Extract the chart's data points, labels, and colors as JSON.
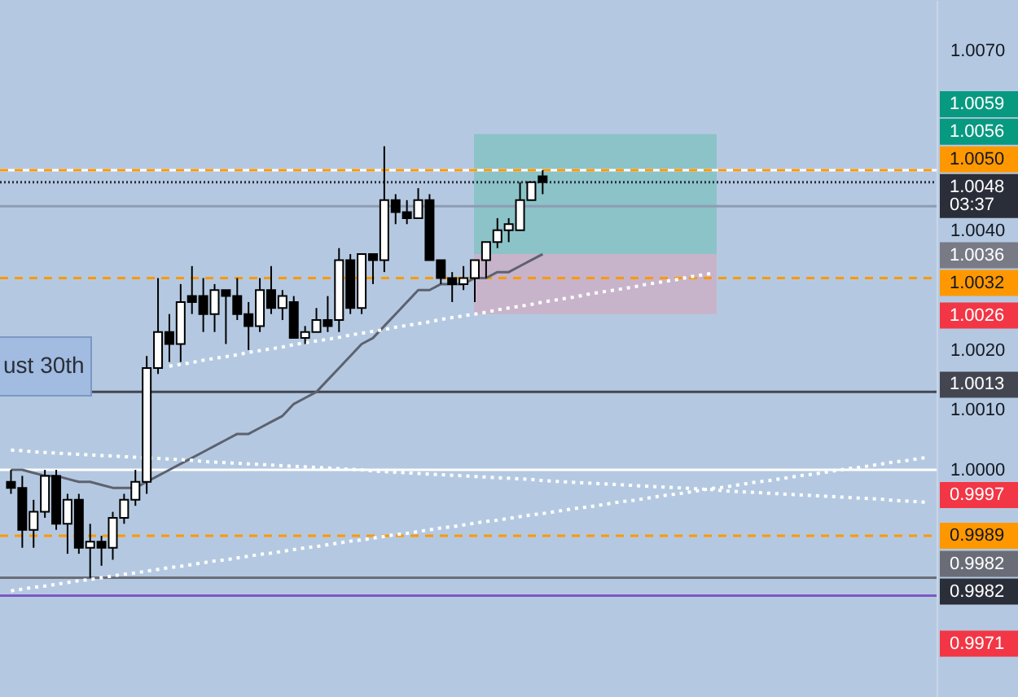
{
  "chart_data": {
    "type": "candlestick",
    "categories": [
      null,
      null,
      null,
      null,
      null,
      null,
      null,
      null,
      null,
      null,
      null,
      null,
      null,
      null,
      null,
      null,
      null,
      null,
      null,
      null,
      null,
      null,
      null,
      null,
      null,
      null,
      null,
      null,
      null,
      null,
      null,
      null,
      null,
      null,
      null,
      null,
      null,
      null,
      null,
      null,
      null,
      null,
      null,
      null,
      null,
      null,
      null,
      null,
      null,
      null,
      null,
      null,
      null,
      null,
      null,
      null,
      null,
      null,
      null,
      null,
      null,
      null,
      null,
      null,
      null,
      null,
      null,
      null,
      null,
      null,
      null,
      null,
      null,
      null,
      null,
      null,
      null,
      null,
      null,
      null,
      null,
      null
    ],
    "ohlc": [
      [
        0.9998,
        1.0,
        0.9996,
        0.9997
      ],
      [
        0.9997,
        0.9999,
        0.9987,
        0.999
      ],
      [
        0.999,
        0.9995,
        0.9987,
        0.9993
      ],
      [
        0.9993,
        1.0,
        0.9992,
        0.9999
      ],
      [
        0.9999,
        1.0,
        0.999,
        0.9991
      ],
      [
        0.9991,
        0.9996,
        0.9986,
        0.9995
      ],
      [
        0.9995,
        0.9996,
        0.9986,
        0.9987
      ],
      [
        0.9987,
        0.9991,
        0.9982,
        0.9988
      ],
      [
        0.9988,
        0.9989,
        0.9984,
        0.9987
      ],
      [
        0.9987,
        0.9993,
        0.9985,
        0.9992
      ],
      [
        0.9992,
        0.9996,
        0.9991,
        0.9995
      ],
      [
        0.9995,
        1.0,
        0.9994,
        0.9998
      ],
      [
        0.9998,
        1.0019,
        0.9996,
        1.0017
      ],
      [
        1.0017,
        1.0032,
        1.0016,
        1.0023
      ],
      [
        1.0023,
        1.0026,
        1.0018,
        1.0021
      ],
      [
        1.0021,
        1.0031,
        1.0018,
        1.0028
      ],
      [
        1.0029,
        1.0034,
        1.0026,
        1.0028
      ],
      [
        1.0029,
        1.0032,
        1.0023,
        1.0026
      ],
      [
        1.0026,
        1.0031,
        1.0023,
        1.003
      ],
      [
        1.003,
        1.003,
        1.0021,
        1.0029
      ],
      [
        1.0029,
        1.0032,
        1.0025,
        1.0026
      ],
      [
        1.0026,
        1.0028,
        1.002,
        1.0024
      ],
      [
        1.0024,
        1.0032,
        1.0023,
        1.003
      ],
      [
        1.003,
        1.0034,
        1.0026,
        1.0027
      ],
      [
        1.0027,
        1.003,
        1.0025,
        1.0029
      ],
      [
        1.0028,
        1.0029,
        1.0022,
        1.0022
      ],
      [
        1.0022,
        1.0024,
        1.0021,
        1.0023
      ],
      [
        1.0023,
        1.0027,
        1.0023,
        1.0025
      ],
      [
        1.0025,
        1.0029,
        1.0023,
        1.0024
      ],
      [
        1.0025,
        1.0037,
        1.0023,
        1.0035
      ],
      [
        1.0035,
        1.0036,
        1.0026,
        1.0027
      ],
      [
        1.0027,
        1.0036,
        1.0026,
        1.0036
      ],
      [
        1.0036,
        1.0036,
        1.0031,
        1.0035
      ],
      [
        1.0035,
        1.0054,
        1.0033,
        1.0045
      ],
      [
        1.0045,
        1.0046,
        1.0041,
        1.0043
      ],
      [
        1.0043,
        1.0045,
        1.0041,
        1.0042
      ],
      [
        1.0042,
        1.0047,
        1.0042,
        1.0045
      ],
      [
        1.0045,
        1.0046,
        1.0035,
        1.0035
      ],
      [
        1.0035,
        1.0035,
        1.0031,
        1.0032
      ],
      [
        1.0032,
        1.0033,
        1.0028,
        1.0031
      ],
      [
        1.0031,
        1.0034,
        1.003,
        1.0032
      ],
      [
        1.0032,
        1.0035,
        1.0028,
        1.0035
      ],
      [
        1.0035,
        1.0038,
        1.0032,
        1.0038
      ],
      [
        1.0038,
        1.0042,
        1.0037,
        1.004
      ],
      [
        1.004,
        1.0042,
        1.0038,
        1.0041
      ],
      [
        1.004,
        1.0048,
        1.004,
        1.0045
      ],
      [
        1.0045,
        1.0048,
        1.0045,
        1.0048
      ],
      [
        1.0049,
        1.005,
        1.0046,
        1.0048
      ],
      null,
      null,
      null,
      null,
      null,
      null,
      null,
      null,
      null,
      null,
      null,
      null,
      null,
      null,
      null,
      null,
      null,
      null,
      null,
      null,
      null,
      null,
      null,
      null,
      null,
      null,
      null,
      null,
      null,
      null,
      null,
      null,
      null,
      null
    ],
    "colors": [
      "#000000",
      "#000000",
      "#ffffff",
      "#ffffff",
      "#000000",
      "#ffffff",
      "#000000",
      "#ffffff",
      "#000000",
      "#ffffff",
      "#ffffff",
      "#ffffff",
      "#ffffff",
      "#ffffff",
      "#000000",
      "#ffffff",
      "#000000",
      "#000000",
      "#ffffff",
      "#000000",
      "#000000",
      "#000000",
      "#ffffff",
      "#000000",
      "#ffffff",
      "#000000",
      "#ffffff",
      "#ffffff",
      "#000000",
      "#ffffff",
      "#000000",
      "#ffffff",
      "#000000",
      "#ffffff",
      "#000000",
      "#000000",
      "#ffffff",
      "#000000",
      "#000000",
      "#000000",
      "#ffffff",
      "#ffffff",
      "#ffffff",
      "#ffffff",
      "#ffffff",
      "#ffffff",
      "#ffffff",
      "#000000",
      null,
      null,
      null,
      null,
      null,
      null,
      null,
      null,
      null,
      null,
      null,
      null,
      null,
      null,
      null,
      null,
      null,
      null,
      null,
      null,
      null,
      null,
      null,
      null,
      null,
      null,
      null,
      null,
      null,
      null,
      null,
      null,
      null,
      null
    ],
    "series": [
      {
        "type": "line",
        "color": "#5d6270",
        "line_style": "solid",
        "values": [
          1.0,
          1.0,
          0.99995,
          0.9999,
          0.9999,
          0.99985,
          0.9998,
          0.9998,
          0.99975,
          0.9997,
          0.9997,
          0.9997,
          0.9998,
          0.9999,
          1.0,
          1.0001,
          1.0002,
          1.0003,
          1.0004,
          1.0005,
          1.0006,
          1.0006,
          1.0007,
          1.0008,
          1.0009,
          1.0011,
          1.0012,
          1.0013,
          1.0015,
          1.0017,
          1.0019,
          1.0021,
          1.0022,
          1.0024,
          1.0026,
          1.0028,
          1.003,
          1.003,
          1.0031,
          1.0031,
          1.0031,
          1.0032,
          1.0032,
          1.0033,
          1.0033,
          1.0034,
          1.0035,
          1.0036,
          null,
          null,
          null,
          null,
          null,
          null,
          null,
          null,
          null,
          null,
          null,
          null,
          null,
          null,
          null,
          null,
          null,
          null,
          null,
          null,
          null,
          null,
          null,
          null,
          null,
          null,
          null,
          null,
          null,
          null,
          null,
          null,
          null,
          null
        ]
      },
      {
        "type": "line",
        "color": "#ffffff",
        "line_style": "dotted",
        "values": [
          null,
          null,
          null,
          null,
          null,
          null,
          null,
          null,
          null,
          null,
          null,
          null,
          null,
          null,
          1.00173,
          1.00176,
          1.00179,
          1.00183,
          1.00186,
          1.00189,
          1.00192,
          1.00196,
          1.00199,
          1.00202,
          1.00205,
          1.00209,
          1.00212,
          1.00215,
          1.00218,
          1.00221,
          1.00225,
          1.00228,
          1.00231,
          1.00234,
          1.00238,
          1.00241,
          1.00244,
          1.00247,
          1.00251,
          1.00254,
          1.00257,
          1.0026,
          1.00263,
          1.00267,
          1.0027,
          1.00273,
          1.00276,
          1.0028,
          1.00283,
          1.00286,
          1.00289,
          1.00293,
          1.00296,
          1.00299,
          1.00302,
          1.00305,
          1.00309,
          1.00312,
          1.00315,
          1.00318,
          1.00322,
          1.00325,
          1.00328,
          null,
          null,
          null,
          null,
          null,
          null,
          null,
          null,
          null,
          null,
          null,
          null,
          null,
          null,
          null,
          null,
          null,
          null,
          null
        ]
      },
      {
        "type": "line",
        "color": "#ffffff",
        "line_style": "dotted",
        "values": [
          0.99798,
          0.99801,
          0.99804,
          0.99806,
          0.99809,
          0.99812,
          0.99815,
          0.99817,
          0.9982,
          0.99823,
          0.99826,
          0.99828,
          0.99831,
          0.99834,
          0.99837,
          0.99839,
          0.99842,
          0.99845,
          0.99848,
          0.9985,
          0.99853,
          0.99856,
          0.99859,
          0.99861,
          0.99864,
          0.99867,
          0.9987,
          0.99872,
          0.99875,
          0.99878,
          0.99881,
          0.99883,
          0.99886,
          0.99889,
          0.99892,
          0.99894,
          0.99897,
          0.999,
          0.99903,
          0.99905,
          0.99908,
          0.99911,
          0.99914,
          0.99916,
          0.99919,
          0.99922,
          0.99925,
          0.99927,
          0.9993,
          0.99933,
          0.99936,
          0.99938,
          0.99941,
          0.99944,
          0.99947,
          0.99949,
          0.99952,
          0.99955,
          0.99958,
          0.9996,
          0.99963,
          0.99966,
          0.99969,
          0.99971,
          0.99974,
          0.99977,
          0.9998,
          0.99982,
          0.99985,
          0.99988,
          0.99991,
          0.99993,
          0.99996,
          0.99999,
          1.00002,
          1.00004,
          1.00007,
          1.0001,
          1.00013,
          1.00015,
          1.00018,
          1.00021
        ]
      },
      {
        "type": "line",
        "color": "#ffffff",
        "line_style": "dotted",
        "values": [
          1.00033,
          1.00032,
          1.0003,
          1.00029,
          1.00028,
          1.00027,
          1.00026,
          1.00025,
          1.00024,
          1.00023,
          1.00022,
          1.00021,
          1.0002,
          1.00019,
          1.00018,
          1.00017,
          1.00016,
          1.00014,
          1.00013,
          1.00012,
          1.00011,
          1.0001,
          1.00009,
          1.00008,
          1.00007,
          1.00006,
          1.00005,
          1.00004,
          1.00003,
          1.00002,
          1.00001,
          1.0,
          0.99998,
          0.99997,
          0.99996,
          0.99995,
          0.99994,
          0.99993,
          0.99992,
          0.99991,
          0.9999,
          0.99989,
          0.99988,
          0.99987,
          0.99986,
          0.99985,
          0.99984,
          0.99982,
          0.99981,
          0.9998,
          0.99979,
          0.99978,
          0.99977,
          0.99976,
          0.99975,
          0.99974,
          0.99973,
          0.99972,
          0.99971,
          0.9997,
          0.99969,
          0.99968,
          0.99967,
          0.99965,
          0.99964,
          0.99963,
          0.99962,
          0.99961,
          0.9996,
          0.99959,
          0.99958,
          0.99957,
          0.99956,
          0.99955,
          0.99954,
          0.99953,
          0.99952,
          0.99951,
          0.99949,
          0.99948,
          0.99947,
          0.99946
        ]
      }
    ],
    "ylim": [
      0.99621,
      1.00784
    ],
    "yticks": [
      {
        "value": 1.007,
        "label": "1.0070"
      },
      {
        "value": 1.004,
        "label": "1.0040"
      },
      {
        "value": 1.002,
        "label": "1.0020"
      },
      {
        "value": 1.001,
        "label": "1.0010"
      },
      {
        "value": 1.0,
        "label": "1.0000"
      }
    ],
    "tick_labels": "y",
    "bands": [
      {
        "axis": "y",
        "from": 1.0036,
        "to": 1.0056,
        "color": "#8bc3c8"
      },
      {
        "axis": "y",
        "from": 1.0036,
        "to": 1.0026,
        "color": "#c7b4ca"
      }
    ],
    "ref_lines": [
      {
        "axis": "y",
        "value": 1.005,
        "color": "#ffffff",
        "line_style": "solid"
      },
      {
        "axis": "y",
        "value": 1.005,
        "label": "1.0050",
        "color": "#ff9800",
        "line_style": "dashed"
      },
      {
        "axis": "y",
        "value": 1.0048,
        "label": "1.0048\n03:37",
        "color": "#2a2e39",
        "line_style": "dotted"
      },
      {
        "axis": "y",
        "value": 1.0044,
        "color": "#8e9cb2",
        "line_style": "solid"
      },
      {
        "axis": "y",
        "value": 1.0032,
        "label": "1.0032",
        "color": "#ff9800",
        "line_style": "dashed"
      },
      {
        "axis": "y",
        "value": 1.0013,
        "label": "1.0013",
        "color": "#434651",
        "line_style": "solid"
      },
      {
        "axis": "y",
        "value": 1.0,
        "color": "#ffffff",
        "line_style": "solid"
      },
      {
        "axis": "y",
        "value": 0.9989,
        "label": "0.9989",
        "color": "#ff9800",
        "line_style": "dashed"
      },
      {
        "axis": "y",
        "value": 0.9982,
        "label": "0.9982",
        "color": "#6a6d78",
        "line_style": "solid"
      },
      {
        "axis": "y",
        "value": 0.9979,
        "color": "#7e57c2",
        "line_style": "solid"
      }
    ],
    "annotations": [
      "ust 30th",
      "1.0059",
      "1.0056",
      "1.0036",
      "1.0026",
      "0.9997",
      "0.9982",
      "0.9971"
    ]
  }
}
